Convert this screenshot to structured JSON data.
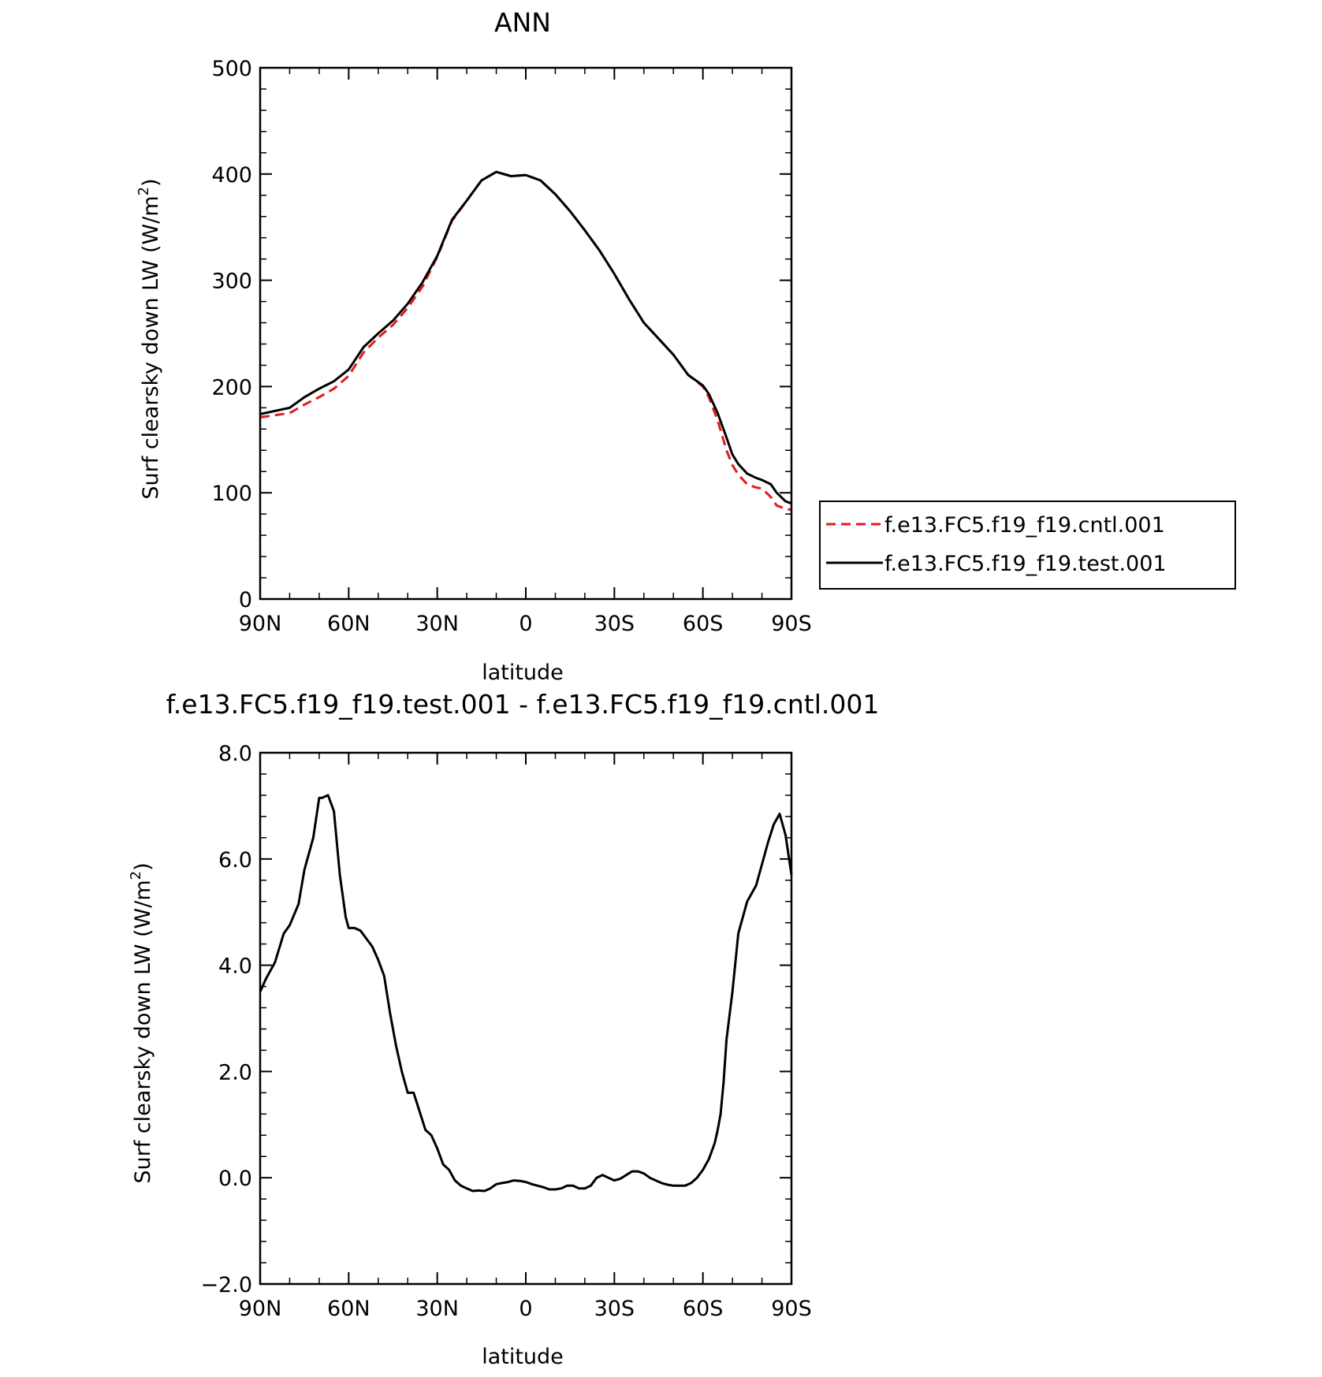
{
  "chart_data": [
    {
      "type": "line",
      "title": "ANN",
      "xlabel": "latitude",
      "ylabel": "Surf clearsky down LW (W/m²)",
      "ylabel_main": "Surf clearsky down LW (W/m",
      "ylabel_sup": "2",
      "ylabel_end": ")",
      "xlim": [
        90,
        -90
      ],
      "ylim": [
        0,
        500
      ],
      "x_tick_values": [
        90,
        60,
        30,
        0,
        -30,
        -60,
        -90
      ],
      "x_tick_labels": [
        "90N",
        "60N",
        "30N",
        "0",
        "30S",
        "60S",
        "90S"
      ],
      "y_tick_values": [
        0,
        100,
        200,
        300,
        400,
        500
      ],
      "y_tick_labels": [
        "0",
        "100",
        "200",
        "300",
        "400",
        "500"
      ],
      "legend_position": "right",
      "series": [
        {
          "name": "f.e13.FC5.f19_f19.cntl.001",
          "color": "#e31a1c",
          "dash": "dashed",
          "x": [
            90,
            80,
            75,
            70,
            65,
            60,
            55,
            50,
            45,
            40,
            35,
            30,
            25,
            20,
            15,
            10,
            5,
            0,
            -5,
            -10,
            -15,
            -20,
            -25,
            -30,
            -35,
            -40,
            -45,
            -50,
            -55,
            -60,
            -62,
            -65,
            -68,
            -70,
            -72,
            -75,
            -78,
            -80,
            -83,
            -85,
            -88,
            -90
          ],
          "y": [
            171,
            175,
            183,
            190,
            198,
            210,
            232,
            246,
            258,
            274,
            294,
            322,
            356,
            375,
            394,
            402,
            398,
            399,
            394,
            381,
            365,
            347,
            328,
            306,
            282,
            260,
            245,
            230,
            211,
            200,
            190,
            168,
            140,
            126,
            117,
            108,
            105,
            104,
            96,
            88,
            85,
            84
          ]
        },
        {
          "name": "f.e13.FC5.f19_f19.test.001",
          "color": "#000000",
          "dash": "solid",
          "x": [
            90,
            80,
            75,
            70,
            65,
            60,
            55,
            50,
            45,
            40,
            35,
            30,
            25,
            20,
            15,
            10,
            5,
            0,
            -5,
            -10,
            -15,
            -20,
            -25,
            -30,
            -35,
            -40,
            -45,
            -50,
            -55,
            -60,
            -62,
            -65,
            -68,
            -70,
            -72,
            -75,
            -78,
            -80,
            -83,
            -85,
            -88,
            -90
          ],
          "y": [
            174,
            180,
            190,
            198,
            205,
            216,
            237,
            250,
            262,
            278,
            298,
            323,
            357,
            375,
            394,
            402,
            398,
            399,
            394,
            381,
            365,
            347,
            328,
            306,
            282,
            260,
            245,
            230,
            211,
            201,
            193,
            175,
            152,
            136,
            127,
            118,
            114,
            112,
            108,
            100,
            92,
            90
          ]
        }
      ]
    },
    {
      "type": "line",
      "title": "f.e13.FC5.f19_f19.test.001 - f.e13.FC5.f19_f19.cntl.001",
      "xlabel": "latitude",
      "ylabel": "Surf clearsky down LW (W/m²)",
      "ylabel_main": "Surf clearsky down LW (W/m",
      "ylabel_sup": "2",
      "ylabel_end": ")",
      "xlim": [
        90,
        -90
      ],
      "ylim": [
        -2,
        8
      ],
      "x_tick_values": [
        90,
        60,
        30,
        0,
        -30,
        -60,
        -90
      ],
      "x_tick_labels": [
        "90N",
        "60N",
        "30N",
        "0",
        "30S",
        "60S",
        "90S"
      ],
      "y_tick_values": [
        -2,
        0,
        2,
        4,
        6,
        8
      ],
      "y_tick_labels": [
        "−2.0",
        "0.0",
        "2.0",
        "4.0",
        "6.0",
        "8.0"
      ],
      "series": [
        {
          "color": "#000000",
          "dash": "solid",
          "x": [
            90,
            88,
            85,
            82,
            80,
            77,
            75,
            72,
            70,
            69,
            67,
            65,
            63,
            61,
            60,
            58,
            56,
            54,
            52,
            50,
            48,
            46,
            44,
            42,
            40,
            38,
            36,
            34,
            32,
            30,
            28,
            26,
            24,
            22,
            20,
            18,
            16,
            14,
            12,
            10,
            8,
            6,
            4,
            2,
            0,
            -2,
            -4,
            -6,
            -8,
            -10,
            -12,
            -14,
            -16,
            -18,
            -20,
            -22,
            -24,
            -26,
            -28,
            -30,
            -32,
            -34,
            -36,
            -38,
            -40,
            -42,
            -44,
            -46,
            -48,
            -50,
            -52,
            -54,
            -56,
            -58,
            -60,
            -62,
            -63,
            -64,
            -65,
            -66,
            -67,
            -68,
            -70,
            -72,
            -75,
            -78,
            -80,
            -82,
            -84,
            -86,
            -88,
            -90
          ],
          "y": [
            3.5,
            3.75,
            4.05,
            4.6,
            4.75,
            5.15,
            5.8,
            6.4,
            7.15,
            7.15,
            7.2,
            6.9,
            5.7,
            4.9,
            4.7,
            4.7,
            4.65,
            4.5,
            4.35,
            4.1,
            3.8,
            3.1,
            2.5,
            2.0,
            1.6,
            1.6,
            1.25,
            0.9,
            0.8,
            0.55,
            0.25,
            0.15,
            -0.05,
            -0.15,
            -0.2,
            -0.25,
            -0.24,
            -0.25,
            -0.2,
            -0.12,
            -0.1,
            -0.08,
            -0.05,
            -0.06,
            -0.08,
            -0.12,
            -0.15,
            -0.18,
            -0.22,
            -0.22,
            -0.2,
            -0.15,
            -0.15,
            -0.2,
            -0.2,
            -0.15,
            0.0,
            0.05,
            0.0,
            -0.05,
            -0.02,
            0.05,
            0.12,
            0.12,
            0.08,
            0.0,
            -0.05,
            -0.1,
            -0.13,
            -0.15,
            -0.15,
            -0.15,
            -0.1,
            0.0,
            0.15,
            0.35,
            0.5,
            0.65,
            0.9,
            1.2,
            1.8,
            2.6,
            3.5,
            4.6,
            5.2,
            5.5,
            5.9,
            6.3,
            6.65,
            6.85,
            6.45,
            5.7
          ]
        }
      ]
    }
  ]
}
